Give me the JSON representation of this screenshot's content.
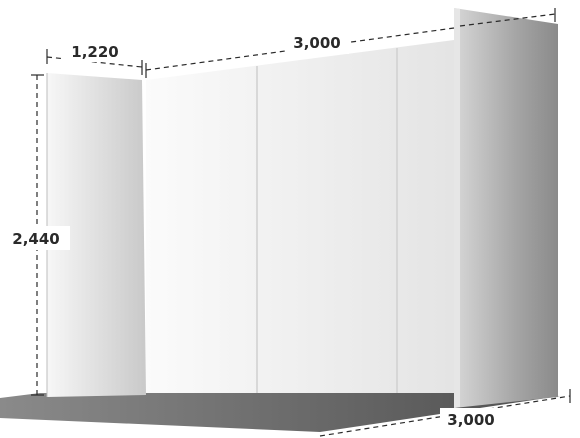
{
  "dimensions": {
    "left_wall_depth": "1,220",
    "back_wall_width": "3,000",
    "wall_height": "2,440",
    "floor_depth": "3,000"
  },
  "colors": {
    "wall_light": "#f3f3f3",
    "wall_mid": "#d9d9d9",
    "wall_dark": "#9a9a9a",
    "floor": "#6b6b6b",
    "floor_dark": "#4a4a4a",
    "line": "#2a2a2a"
  }
}
